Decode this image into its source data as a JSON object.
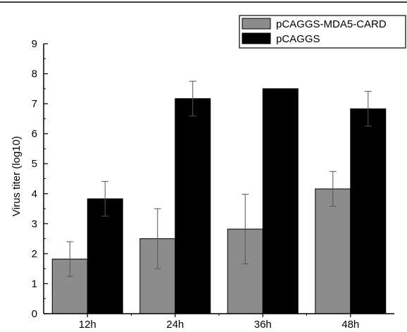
{
  "chart_data": {
    "type": "bar",
    "title": "",
    "xlabel": "",
    "ylabel": "Virus titer (log10)",
    "ylim": [
      0,
      9
    ],
    "yticks": [
      0,
      1,
      2,
      3,
      4,
      5,
      6,
      7,
      8,
      9
    ],
    "categories": [
      "12h",
      "24h",
      "36h",
      "48h"
    ],
    "legend_position": "top-right",
    "grid": false,
    "series": [
      {
        "name": "pCAGGS-MDA5-CARD",
        "color": "#8c8c8c",
        "values": [
          1.82,
          2.5,
          2.82,
          4.16
        ],
        "errors": [
          0.58,
          1.0,
          1.16,
          0.58
        ]
      },
      {
        "name": "pCAGGS",
        "color": "#000000",
        "values": [
          3.83,
          7.17,
          7.5,
          6.83
        ],
        "errors": [
          0.58,
          0.58,
          0.0,
          0.58
        ]
      }
    ]
  }
}
